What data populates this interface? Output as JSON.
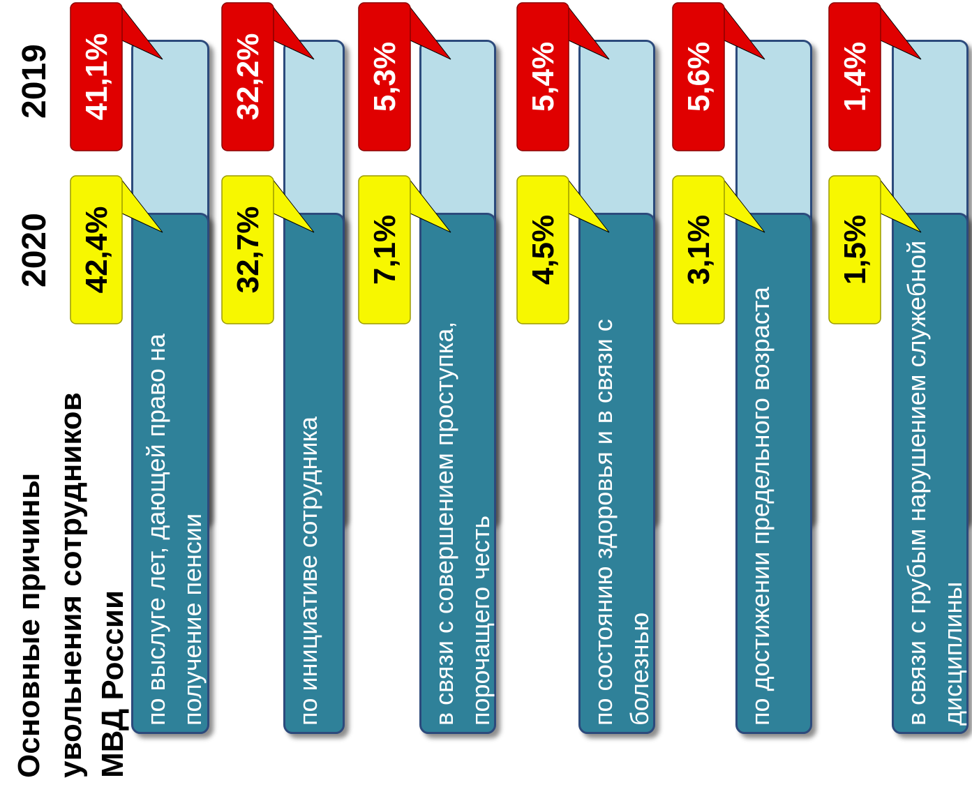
{
  "colors": {
    "bar_2020": "#2f8199",
    "bar_2019": "#b9dde8",
    "badge_2020": "#f7f700",
    "badge_2019": "#e00000"
  },
  "title": "Основные причины увольнения сотрудников МВД России",
  "years": [
    "2020",
    "2019"
  ],
  "chart_data": {
    "type": "bar",
    "title": "Основные причины увольнения сотрудников МВД России",
    "orientation": "horizontal-rotated",
    "categories": [
      "по выслуге лет, дающей право на получение пенсии",
      "по инициативе сотрудника",
      "в связи с совершением проступка, порочащего честь",
      "по состоянию здоровья и в связи с болезнью",
      "по достижении предельного возраста",
      "в связи с грубым нарушением служебной дисциплины"
    ],
    "series": [
      {
        "name": "2020",
        "values": [
          42.4,
          32.7,
          7.1,
          4.5,
          3.1,
          1.5
        ],
        "labels": [
          "42,4%",
          "32,7%",
          "7,1%",
          "4,5%",
          "3,1%",
          "1,5%"
        ]
      },
      {
        "name": "2019",
        "values": [
          41.1,
          32.2,
          5.3,
          5.4,
          5.6,
          1.4
        ],
        "labels": [
          "41,1%",
          "32,2%",
          "5,3%",
          "5,4%",
          "5,6%",
          "1,4%"
        ]
      }
    ],
    "unit": "%",
    "legend": "none",
    "grid": false
  }
}
